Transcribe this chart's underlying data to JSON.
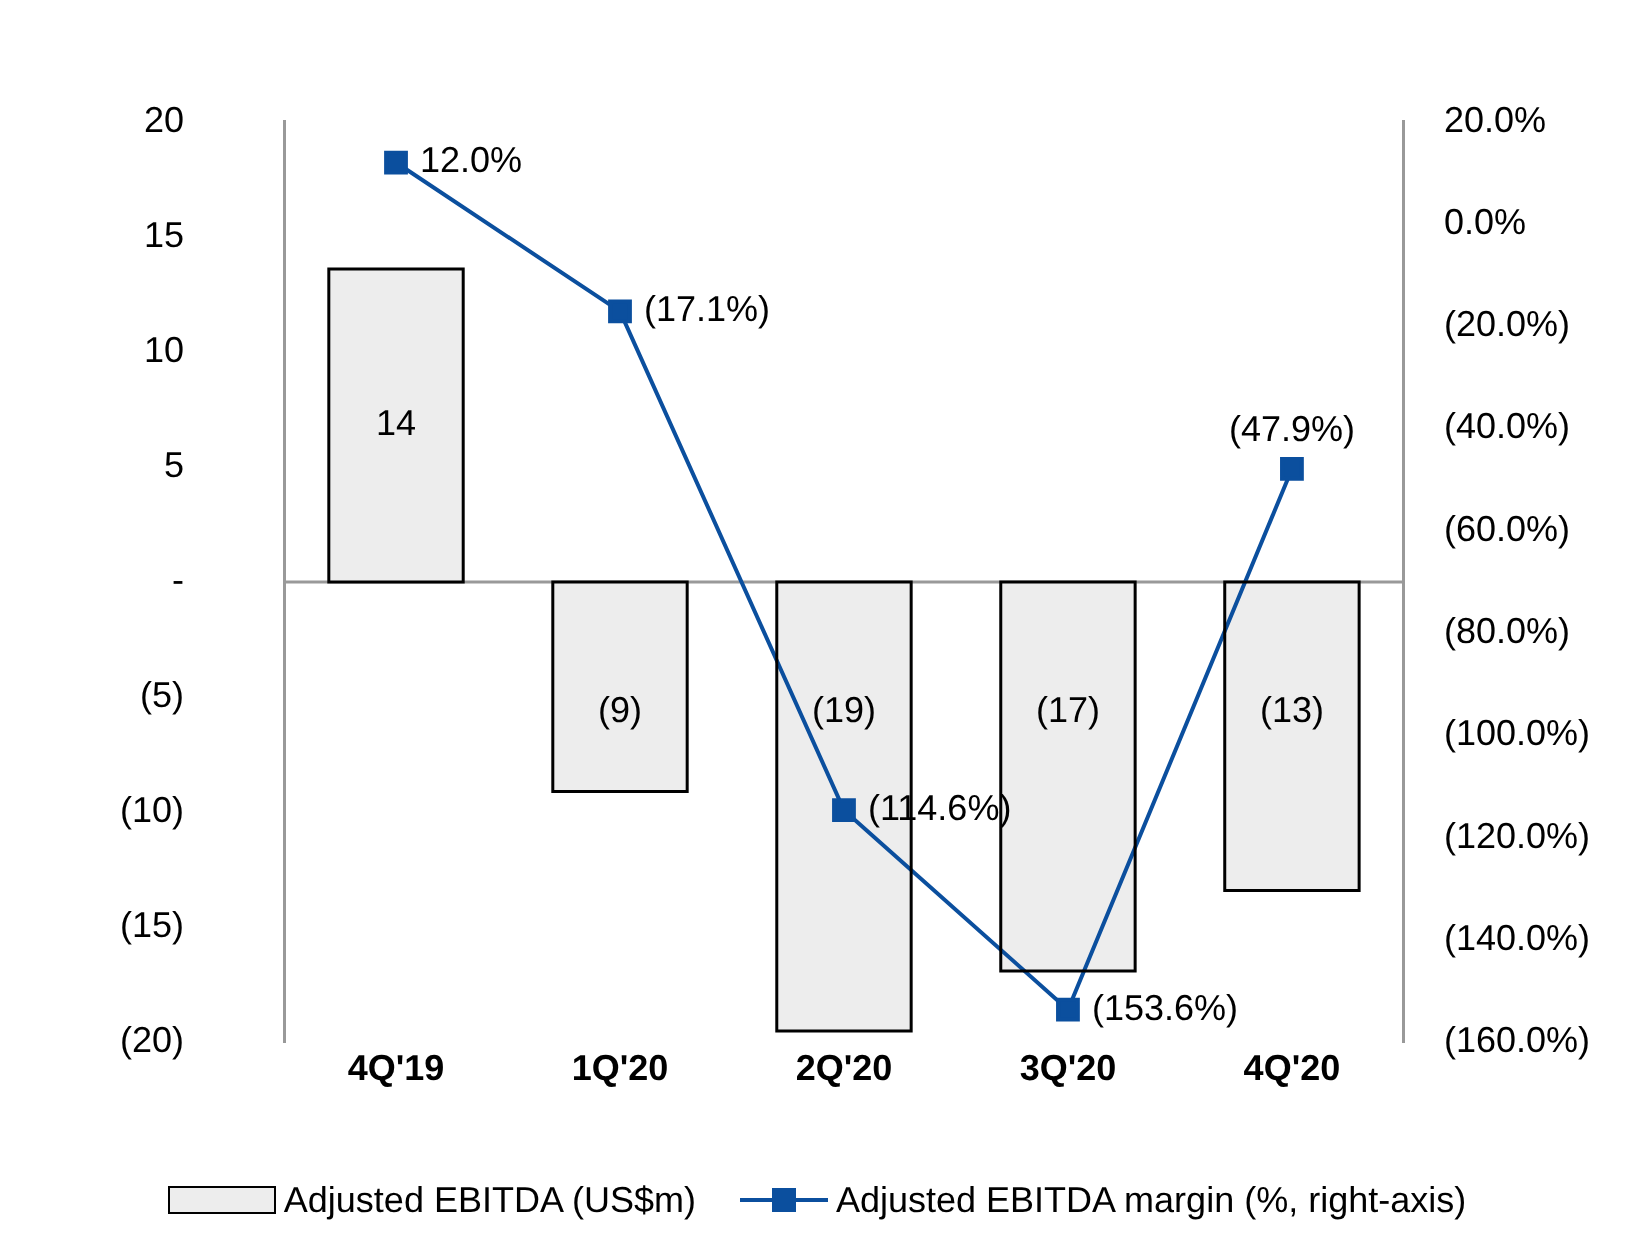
{
  "chart_data": {
    "type": "bar",
    "categories": [
      "4Q'19",
      "1Q'20",
      "2Q'20",
      "3Q'20",
      "4Q'20"
    ],
    "series": [
      {
        "name": "Adjusted EBITDA (US$m)",
        "type": "bar",
        "color": "#ededed",
        "values": [
          13.6,
          -9.1,
          -19.5,
          -16.9,
          -13.4
        ],
        "value_labels": [
          "14",
          "(9)",
          "(19)",
          "(17)",
          "(13)"
        ]
      },
      {
        "name": "Adjusted EBITDA margin (%, right-axis)",
        "type": "line",
        "axis": "y2",
        "color": "#0b4f9e",
        "values": [
          12.0,
          -17.1,
          -114.6,
          -153.6,
          -47.9
        ],
        "value_labels": [
          "12.0%",
          "(17.1%)",
          "(114.6%)",
          "(153.6%)",
          "(47.9%)"
        ]
      }
    ],
    "ylim": [
      -20,
      20
    ],
    "yticks": [
      {
        "value": -20,
        "label": "(20)"
      },
      {
        "value": -15,
        "label": "(15)"
      },
      {
        "value": -10,
        "label": "(10)"
      },
      {
        "value": -5,
        "label": "(5)"
      },
      {
        "value": 0,
        "label": "-"
      },
      5,
      10,
      15,
      20
    ],
    "y2lim": [
      -160,
      20
    ],
    "y2ticks": [
      {
        "value": -160,
        "label": "(160.0%)"
      },
      {
        "value": -140,
        "label": "(140.0%)"
      },
      {
        "value": -120,
        "label": "(120.0%)"
      },
      {
        "value": -100,
        "label": "(100.0%)"
      },
      {
        "value": -80,
        "label": "(80.0%)"
      },
      {
        "value": -60,
        "label": "(60.0%)"
      },
      {
        "value": -40,
        "label": "(40.0%)"
      },
      {
        "value": -20,
        "label": "(20.0%)"
      },
      {
        "value": 0,
        "label": "0.0%"
      },
      {
        "value": 20,
        "label": "20.0%"
      }
    ],
    "ref_lines": [
      {
        "axis": "y",
        "value": 0,
        "color": "#999999"
      }
    ],
    "marker": "square",
    "line_style": "solid",
    "grid": false,
    "legend": "bottom"
  }
}
